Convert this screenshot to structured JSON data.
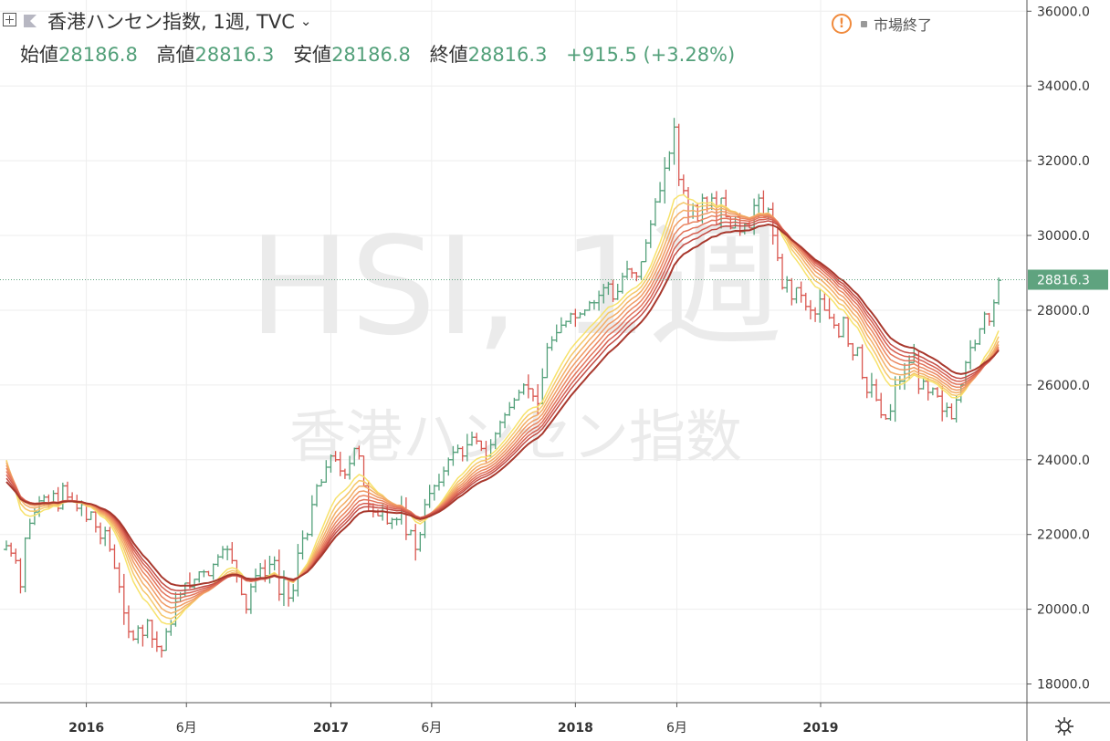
{
  "header": {
    "symbol_title": "香港ハンセン指数, 1週, TVC",
    "ohlc": [
      {
        "label": "始値",
        "value": "28186.8"
      },
      {
        "label": "高値",
        "value": "28816.3"
      },
      {
        "label": "安値",
        "value": "28186.8"
      },
      {
        "label": "終値",
        "value": "28816.3"
      }
    ],
    "change": "+915.5 (+3.28%)",
    "market_status": "市場終了",
    "icons": [
      "plus-square-icon",
      "flag-icon",
      "chevron-down-icon",
      "warning-icon",
      "gear-icon"
    ]
  },
  "watermark": {
    "line1": "HSI, 1週",
    "line2": "香港ハンセン指数"
  },
  "colors": {
    "up": "#53a07a",
    "down": "#d9564f",
    "ribbon": [
      "#f7e26b",
      "#f5c76a",
      "#f3ae66",
      "#f09a63",
      "#ea8660",
      "#e2735a",
      "#d65f51",
      "#c44c44",
      "#a8382d"
    ],
    "price_tag": "#5fa37f",
    "grid": "#eeeeee"
  },
  "chart_data": {
    "type": "ohlc-bar",
    "interval": "1 week",
    "y_axis": {
      "min": 17500,
      "max": 36300,
      "ticks": [
        "18000.0",
        "20000.0",
        "22000.0",
        "24000.0",
        "26000.0",
        "28000.0",
        "30000.0",
        "32000.0",
        "34000.0",
        "36000.0"
      ],
      "side": "right"
    },
    "x_axis": {
      "labels": [
        {
          "label": "2016",
          "date": "2016-01-04",
          "bold": true
        },
        {
          "label": "6月",
          "date": "2016-06-01",
          "bold": false
        },
        {
          "label": "2017",
          "date": "2017-01-02",
          "bold": true
        },
        {
          "label": "6月",
          "date": "2017-06-01",
          "bold": false
        },
        {
          "label": "2018",
          "date": "2018-01-01",
          "bold": true
        },
        {
          "label": "6月",
          "date": "2018-06-01",
          "bold": false
        },
        {
          "label": "2019",
          "date": "2019-01-01",
          "bold": true
        }
      ]
    },
    "last_price": "28816.3",
    "closes": [
      21700,
      21500,
      21300,
      20600,
      21900,
      22300,
      22600,
      22900,
      23000,
      22800,
      23100,
      22700,
      23300,
      23000,
      22900,
      22700,
      22800,
      22400,
      22600,
      22200,
      21900,
      22100,
      21600,
      21100,
      20600,
      19900,
      19400,
      19200,
      19500,
      19300,
      19700,
      19200,
      19000,
      18900,
      19400,
      19600,
      20200,
      20400,
      20700,
      20600,
      20800,
      21000,
      21000,
      20900,
      21200,
      21400,
      21600,
      21600,
      21300,
      20900,
      20400,
      20000,
      20600,
      20900,
      21100,
      20900,
      21200,
      21300,
      20400,
      20800,
      20300,
      20500,
      21500,
      21900,
      22000,
      22800,
      23300,
      23400,
      23800,
      24100,
      24000,
      23700,
      23600,
      23900,
      24300,
      24100,
      23300,
      22800,
      22600,
      22500,
      22700,
      22300,
      22400,
      22400,
      22700,
      22000,
      22100,
      21600,
      22000,
      22800,
      23100,
      23300,
      23400,
      23700,
      24000,
      24200,
      24300,
      24100,
      24400,
      24600,
      24500,
      24300,
      24100,
      24400,
      24700,
      25000,
      25200,
      25400,
      25600,
      25800,
      26000,
      25900,
      25700,
      25500,
      26200,
      27000,
      27200,
      27400,
      27600,
      27700,
      27900,
      27800,
      27900,
      28000,
      28200,
      28200,
      28400,
      28600,
      28700,
      28300,
      28500,
      28900,
      29100,
      29000,
      28900,
      29300,
      29800,
      30300,
      30900,
      31200,
      31800,
      32200,
      32900,
      31500,
      31200,
      30500,
      30800,
      30400,
      31000,
      30800,
      31000,
      30300,
      31000,
      30500,
      30200,
      30500,
      30100,
      30300,
      30200,
      30800,
      31000,
      30500,
      30700,
      30000,
      29400,
      28600,
      28800,
      28300,
      28600,
      28400,
      28100,
      28000,
      27900,
      28300,
      28000,
      27800,
      27600,
      27300,
      27800,
      27100,
      26800,
      27000,
      26200,
      25800,
      26000,
      25600,
      25200,
      25100,
      25300,
      26000,
      26100,
      26300,
      26600,
      26800,
      25900,
      26100,
      25800,
      25900,
      25700,
      25300,
      25400,
      25100,
      25600,
      26000,
      26600,
      27000,
      27100,
      27500,
      27900,
      27700,
      28200,
      28800
    ]
  }
}
